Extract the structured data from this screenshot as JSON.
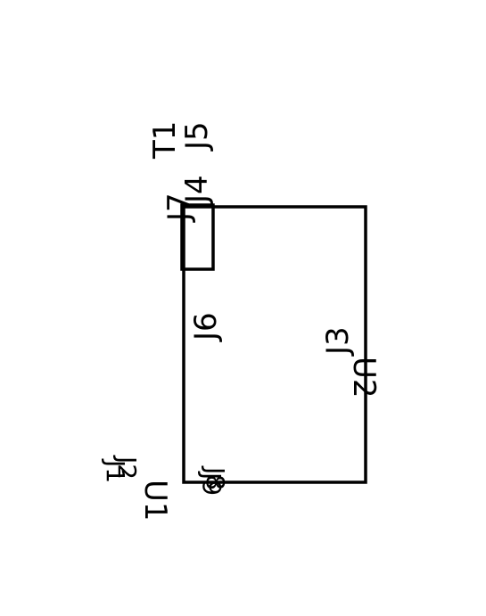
{
  "diagram": {
    "labels": {
      "t1": "T1",
      "j5": "J5",
      "j7": "J7",
      "j4": "J4",
      "j6": "J6",
      "j3": "J3",
      "u2": "U2",
      "u1": "U1",
      "j2": "J2",
      "j1": "J1",
      "j8": "J8",
      "j9": "J9"
    }
  }
}
